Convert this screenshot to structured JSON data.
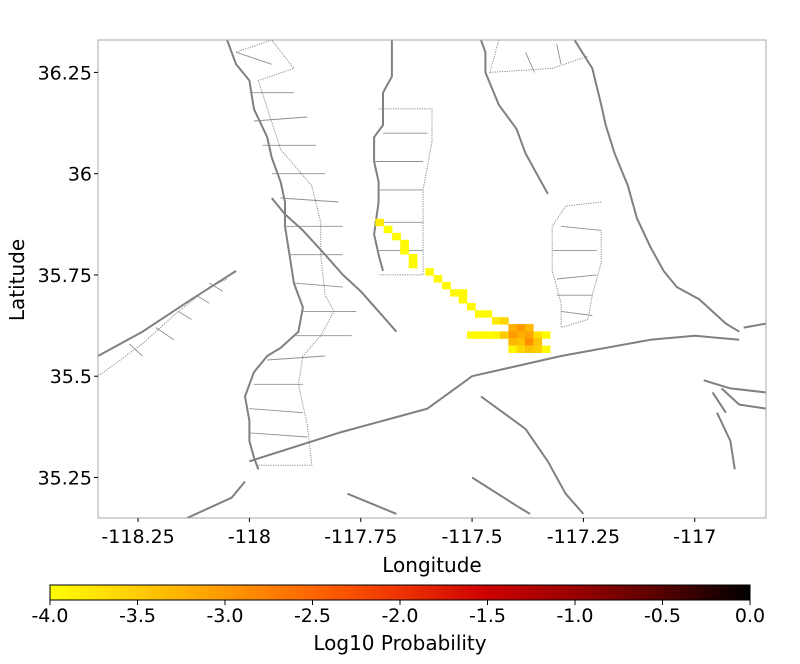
{
  "chart_data": {
    "type": "heatmap",
    "xlabel": "Longitude",
    "ylabel": "Latitude",
    "xlim": [
      -118.34,
      -116.84
    ],
    "ylim": [
      35.15,
      36.33
    ],
    "x_ticks": [
      {
        "value": -118.25,
        "label": "-118.25"
      },
      {
        "value": -118.0,
        "label": "-118"
      },
      {
        "value": -117.75,
        "label": "-117.75"
      },
      {
        "value": -117.5,
        "label": "-117.5"
      },
      {
        "value": -117.25,
        "label": "-117.25"
      },
      {
        "value": -117.0,
        "label": "-117"
      }
    ],
    "y_ticks": [
      {
        "value": 35.25,
        "label": "35.25"
      },
      {
        "value": 35.5,
        "label": "35.5"
      },
      {
        "value": 35.75,
        "label": "35.75"
      },
      {
        "value": 36.0,
        "label": "36"
      },
      {
        "value": 36.25,
        "label": "36.25"
      }
    ],
    "colorbar": {
      "label": "Log10 Probability",
      "range": [
        -4.0,
        0.0
      ],
      "colormap": "hot_r",
      "colors": [
        "#ffff00",
        "#ffcc00",
        "#ff9900",
        "#ff6600",
        "#ee3300",
        "#cc0000",
        "#990000",
        "#550000",
        "#000000"
      ],
      "ticks": [
        {
          "value": -4.0,
          "label": "-4.0"
        },
        {
          "value": -3.5,
          "label": "-3.5"
        },
        {
          "value": -3.0,
          "label": "-3.0"
        },
        {
          "value": -2.5,
          "label": "-2.5"
        },
        {
          "value": -2.0,
          "label": "-2.0"
        },
        {
          "value": -1.5,
          "label": "-1.5"
        },
        {
          "value": -1.0,
          "label": "-1.0"
        },
        {
          "value": -0.5,
          "label": "-0.5"
        },
        {
          "value": 0.0,
          "label": "0.0"
        }
      ]
    },
    "cell_size": {
      "lon": 0.0187,
      "lat": 0.0174
    },
    "cells": [
      {
        "lon": -117.708,
        "lat": 35.88,
        "v": -3.8
      },
      {
        "lon": -117.689,
        "lat": 35.863,
        "v": -4.0
      },
      {
        "lon": -117.67,
        "lat": 35.845,
        "v": -3.95
      },
      {
        "lon": -117.652,
        "lat": 35.828,
        "v": -3.95
      },
      {
        "lon": -117.652,
        "lat": 35.81,
        "v": -3.95
      },
      {
        "lon": -117.633,
        "lat": 35.793,
        "v": -3.95
      },
      {
        "lon": -117.633,
        "lat": 35.776,
        "v": -3.95
      },
      {
        "lon": -117.596,
        "lat": 35.758,
        "v": -3.95
      },
      {
        "lon": -117.577,
        "lat": 35.741,
        "v": -3.95
      },
      {
        "lon": -117.558,
        "lat": 35.724,
        "v": -3.95
      },
      {
        "lon": -117.54,
        "lat": 35.706,
        "v": -3.95
      },
      {
        "lon": -117.521,
        "lat": 35.706,
        "v": -3.95
      },
      {
        "lon": -117.521,
        "lat": 35.689,
        "v": -3.95
      },
      {
        "lon": -117.502,
        "lat": 35.672,
        "v": -3.95
      },
      {
        "lon": -117.484,
        "lat": 35.654,
        "v": -3.95
      },
      {
        "lon": -117.465,
        "lat": 35.654,
        "v": -3.95
      },
      {
        "lon": -117.446,
        "lat": 35.637,
        "v": -3.8
      },
      {
        "lon": -117.428,
        "lat": 35.637,
        "v": -3.6
      },
      {
        "lon": -117.502,
        "lat": 35.602,
        "v": -3.95
      },
      {
        "lon": -117.484,
        "lat": 35.602,
        "v": -3.95
      },
      {
        "lon": -117.465,
        "lat": 35.602,
        "v": -3.95
      },
      {
        "lon": -117.446,
        "lat": 35.602,
        "v": -3.9
      },
      {
        "lon": -117.409,
        "lat": 35.62,
        "v": -3.2
      },
      {
        "lon": -117.39,
        "lat": 35.62,
        "v": -3.0
      },
      {
        "lon": -117.372,
        "lat": 35.62,
        "v": -3.3
      },
      {
        "lon": -117.409,
        "lat": 35.602,
        "v": -3.0
      },
      {
        "lon": -117.39,
        "lat": 35.602,
        "v": -3.2
      },
      {
        "lon": -117.372,
        "lat": 35.602,
        "v": -3.1
      },
      {
        "lon": -117.353,
        "lat": 35.602,
        "v": -3.7
      },
      {
        "lon": -117.334,
        "lat": 35.602,
        "v": -3.95
      },
      {
        "lon": -117.428,
        "lat": 35.602,
        "v": -3.5
      },
      {
        "lon": -117.409,
        "lat": 35.585,
        "v": -3.3
      },
      {
        "lon": -117.39,
        "lat": 35.585,
        "v": -3.4
      },
      {
        "lon": -117.372,
        "lat": 35.585,
        "v": -2.9
      },
      {
        "lon": -117.353,
        "lat": 35.585,
        "v": -3.4
      },
      {
        "lon": -117.409,
        "lat": 35.567,
        "v": -3.9
      },
      {
        "lon": -117.39,
        "lat": 35.567,
        "v": -3.6
      },
      {
        "lon": -117.372,
        "lat": 35.567,
        "v": -3.4
      },
      {
        "lon": -117.353,
        "lat": 35.567,
        "v": -3.5
      },
      {
        "lon": -117.334,
        "lat": 35.567,
        "v": -3.95
      }
    ],
    "map_features": {
      "faults": [
        [
          [
            -118.05,
            36.33
          ],
          [
            -118.03,
            36.27
          ],
          [
            -118.0,
            36.23
          ],
          [
            -117.99,
            36.16
          ],
          [
            -117.96,
            36.09
          ],
          [
            -117.95,
            36.04
          ],
          [
            -117.93,
            35.98
          ],
          [
            -117.92,
            35.93
          ],
          [
            -117.92,
            35.87
          ],
          [
            -117.91,
            35.8
          ],
          [
            -117.9,
            35.73
          ],
          [
            -117.88,
            35.67
          ],
          [
            -117.89,
            35.61
          ],
          [
            -117.93,
            35.57
          ],
          [
            -117.96,
            35.55
          ],
          [
            -117.99,
            35.51
          ],
          [
            -118.01,
            35.45
          ],
          [
            -118.0,
            35.39
          ],
          [
            -118.0,
            35.34
          ],
          [
            -117.99,
            35.3
          ],
          [
            -117.98,
            35.27
          ]
        ],
        [
          [
            -118.34,
            35.55
          ],
          [
            -118.24,
            35.61
          ],
          [
            -118.13,
            35.69
          ],
          [
            -118.03,
            35.76
          ]
        ],
        [
          [
            -117.95,
            35.94
          ],
          [
            -117.92,
            35.9
          ],
          [
            -117.88,
            35.86
          ],
          [
            -117.83,
            35.8
          ],
          [
            -117.79,
            35.75
          ],
          [
            -117.75,
            35.71
          ],
          [
            -117.71,
            35.66
          ],
          [
            -117.67,
            35.61
          ]
        ],
        [
          [
            -118.0,
            35.29
          ],
          [
            -117.8,
            35.36
          ],
          [
            -117.6,
            35.42
          ],
          [
            -117.5,
            35.5
          ],
          [
            -117.3,
            35.55
          ],
          [
            -117.1,
            35.59
          ],
          [
            -117.0,
            35.6
          ],
          [
            -116.9,
            35.59
          ]
        ],
        [
          [
            -117.68,
            36.33
          ],
          [
            -117.68,
            36.24
          ],
          [
            -117.7,
            36.2
          ],
          [
            -117.7,
            36.12
          ],
          [
            -117.72,
            36.09
          ],
          [
            -117.72,
            36.03
          ],
          [
            -117.71,
            35.98
          ],
          [
            -117.71,
            35.93
          ],
          [
            -117.72,
            35.85
          ],
          [
            -117.71,
            35.8
          ],
          [
            -117.7,
            35.76
          ]
        ],
        [
          [
            -117.48,
            36.33
          ],
          [
            -117.47,
            36.3
          ],
          [
            -117.47,
            36.25
          ],
          [
            -117.44,
            36.17
          ],
          [
            -117.4,
            36.11
          ],
          [
            -117.38,
            36.05
          ],
          [
            -117.35,
            35.99
          ],
          [
            -117.33,
            35.95
          ]
        ],
        [
          [
            -117.27,
            36.33
          ],
          [
            -117.23,
            36.26
          ],
          [
            -117.21,
            36.17
          ],
          [
            -117.2,
            36.12
          ],
          [
            -117.18,
            36.05
          ],
          [
            -117.15,
            35.97
          ],
          [
            -117.13,
            35.89
          ],
          [
            -117.1,
            35.82
          ],
          [
            -117.07,
            35.76
          ],
          [
            -117.04,
            35.72
          ],
          [
            -116.99,
            35.69
          ],
          [
            -116.93,
            35.63
          ],
          [
            -116.9,
            35.61
          ]
        ],
        [
          [
            -117.48,
            35.45
          ],
          [
            -117.38,
            35.37
          ],
          [
            -117.33,
            35.29
          ],
          [
            -117.29,
            35.21
          ],
          [
            -117.25,
            35.16
          ]
        ],
        [
          [
            -117.5,
            35.25
          ],
          [
            -117.4,
            35.18
          ],
          [
            -117.37,
            35.16
          ]
        ],
        [
          [
            -117.78,
            35.21
          ],
          [
            -117.67,
            35.16
          ]
        ],
        [
          [
            -118.14,
            35.15
          ],
          [
            -118.04,
            35.2
          ],
          [
            -118.01,
            35.24
          ]
        ],
        [
          [
            -116.98,
            35.49
          ],
          [
            -116.92,
            35.47
          ],
          [
            -116.84,
            35.46
          ]
        ],
        [
          [
            -116.94,
            35.47
          ],
          [
            -116.9,
            35.43
          ],
          [
            -116.84,
            35.42
          ]
        ],
        [
          [
            -116.96,
            35.46
          ],
          [
            -116.93,
            35.41
          ]
        ],
        [
          [
            -116.95,
            35.41
          ],
          [
            -116.92,
            35.34
          ],
          [
            -116.91,
            35.27
          ]
        ],
        [
          [
            -116.89,
            35.62
          ],
          [
            -116.84,
            35.63
          ]
        ]
      ],
      "dotted_outlines": [
        [
          [
            -118.03,
            36.3
          ],
          [
            -117.95,
            36.33
          ],
          [
            -117.9,
            36.26
          ],
          [
            -117.98,
            36.23
          ],
          [
            -117.93,
            36.06
          ],
          [
            -117.86,
            35.97
          ],
          [
            -117.84,
            35.88
          ],
          [
            -117.84,
            35.8
          ],
          [
            -117.83,
            35.7
          ],
          [
            -117.81,
            35.66
          ],
          [
            -117.84,
            35.6
          ],
          [
            -117.88,
            35.55
          ],
          [
            -117.89,
            35.48
          ],
          [
            -117.87,
            35.38
          ],
          [
            -117.86,
            35.28
          ],
          [
            -117.98,
            35.28
          ]
        ],
        [
          [
            -117.71,
            36.16
          ],
          [
            -117.59,
            36.16
          ],
          [
            -117.59,
            36.08
          ],
          [
            -117.61,
            35.96
          ],
          [
            -117.61,
            35.87
          ],
          [
            -117.61,
            35.75
          ],
          [
            -117.71,
            35.75
          ]
        ],
        [
          [
            -117.21,
            35.93
          ],
          [
            -117.29,
            35.92
          ],
          [
            -117.32,
            35.87
          ],
          [
            -117.32,
            35.76
          ],
          [
            -117.3,
            35.68
          ],
          [
            -117.3,
            35.62
          ],
          [
            -117.24,
            35.64
          ],
          [
            -117.23,
            35.7
          ],
          [
            -117.21,
            35.78
          ],
          [
            -117.21,
            35.86
          ]
        ],
        [
          [
            -118.34,
            35.5
          ],
          [
            -118.24,
            35.58
          ],
          [
            -118.17,
            35.65
          ],
          [
            -118.09,
            35.72
          ],
          [
            -118.05,
            35.74
          ]
        ],
        [
          [
            -117.44,
            36.33
          ],
          [
            -117.46,
            36.25
          ],
          [
            -117.32,
            36.26
          ],
          [
            -117.24,
            36.29
          ]
        ]
      ],
      "dotted_rungs": [
        [
          [
            -118.03,
            36.3
          ],
          [
            -117.95,
            36.27
          ]
        ],
        [
          [
            -118.0,
            36.2
          ],
          [
            -117.9,
            36.2
          ]
        ],
        [
          [
            -117.99,
            36.13
          ],
          [
            -117.87,
            36.14
          ]
        ],
        [
          [
            -117.97,
            36.07
          ],
          [
            -117.85,
            36.07
          ]
        ],
        [
          [
            -117.95,
            36.0
          ],
          [
            -117.83,
            36.0
          ]
        ],
        [
          [
            -117.93,
            35.94
          ],
          [
            -117.8,
            35.93
          ]
        ],
        [
          [
            -117.92,
            35.87
          ],
          [
            -117.79,
            35.87
          ]
        ],
        [
          [
            -117.91,
            35.8
          ],
          [
            -117.79,
            35.8
          ]
        ],
        [
          [
            -117.9,
            35.73
          ],
          [
            -117.79,
            35.72
          ]
        ],
        [
          [
            -117.88,
            35.66
          ],
          [
            -117.76,
            35.66
          ]
        ],
        [
          [
            -117.9,
            35.6
          ],
          [
            -117.77,
            35.6
          ]
        ],
        [
          [
            -117.96,
            35.54
          ],
          [
            -117.83,
            35.55
          ]
        ],
        [
          [
            -117.99,
            35.48
          ],
          [
            -117.88,
            35.48
          ]
        ],
        [
          [
            -118.0,
            35.42
          ],
          [
            -117.88,
            35.41
          ]
        ],
        [
          [
            -118.0,
            35.36
          ],
          [
            -117.87,
            35.35
          ]
        ],
        [
          [
            -117.7,
            36.1
          ],
          [
            -117.6,
            36.1
          ]
        ],
        [
          [
            -117.72,
            36.03
          ],
          [
            -117.61,
            36.03
          ]
        ],
        [
          [
            -117.71,
            35.96
          ],
          [
            -117.61,
            35.96
          ]
        ],
        [
          [
            -117.72,
            35.88
          ],
          [
            -117.61,
            35.88
          ]
        ],
        [
          [
            -117.71,
            35.81
          ],
          [
            -117.61,
            35.81
          ]
        ],
        [
          [
            -117.3,
            35.87
          ],
          [
            -117.21,
            35.86
          ]
        ],
        [
          [
            -117.32,
            35.81
          ],
          [
            -117.22,
            35.81
          ]
        ],
        [
          [
            -117.31,
            35.74
          ],
          [
            -117.22,
            35.75
          ]
        ],
        [
          [
            -117.31,
            35.7
          ],
          [
            -117.23,
            35.7
          ]
        ],
        [
          [
            -117.3,
            35.66
          ],
          [
            -117.23,
            35.65
          ]
        ],
        [
          [
            -118.27,
            35.58
          ],
          [
            -118.24,
            35.55
          ]
        ],
        [
          [
            -118.21,
            35.62
          ],
          [
            -118.17,
            35.59
          ]
        ],
        [
          [
            -118.16,
            35.66
          ],
          [
            -118.13,
            35.64
          ]
        ],
        [
          [
            -118.12,
            35.7
          ],
          [
            -118.09,
            35.68
          ]
        ],
        [
          [
            -118.09,
            35.73
          ],
          [
            -118.06,
            35.71
          ]
        ],
        [
          [
            -117.38,
            36.3
          ],
          [
            -117.36,
            36.25
          ]
        ],
        [
          [
            -117.31,
            36.32
          ],
          [
            -117.3,
            36.27
          ]
        ]
      ]
    }
  }
}
